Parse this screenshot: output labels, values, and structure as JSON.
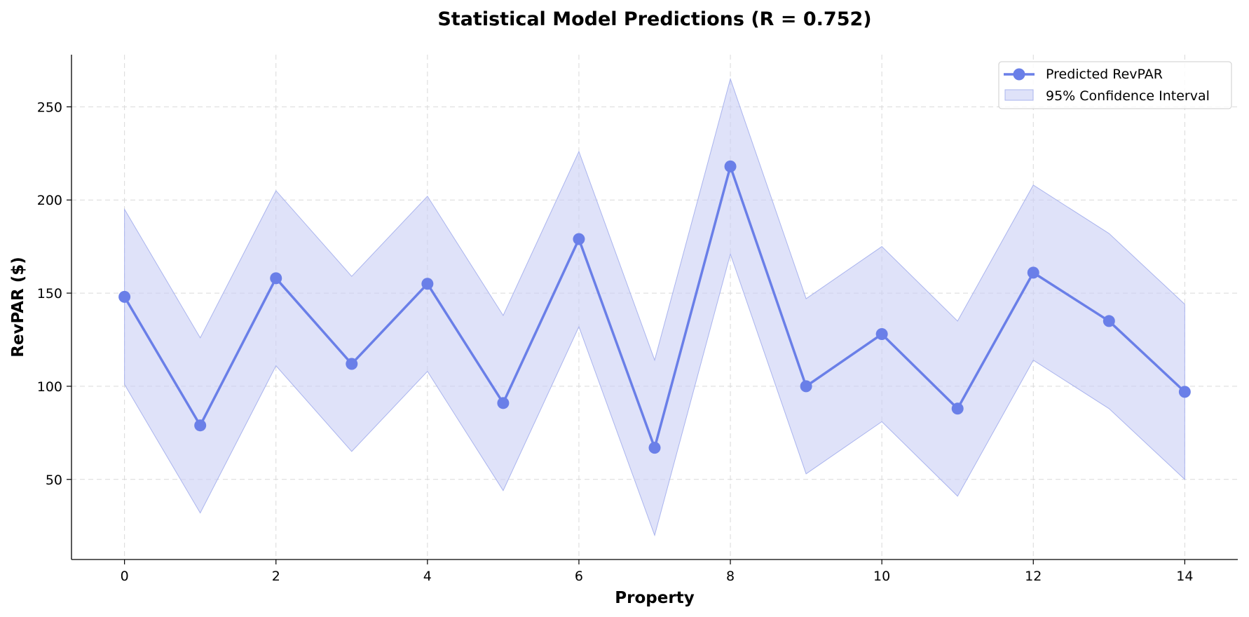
{
  "chart_data": {
    "type": "line",
    "title": "Statistical Model Predictions (R = 0.752)",
    "xlabel": "Property",
    "ylabel": "RevPAR ($)",
    "x": [
      0,
      1,
      2,
      3,
      4,
      5,
      6,
      7,
      8,
      9,
      10,
      11,
      12,
      13,
      14
    ],
    "xlim": [
      -0.7,
      14.7
    ],
    "ylim": [
      7,
      278
    ],
    "xticks": [
      0,
      2,
      4,
      6,
      8,
      10,
      12,
      14
    ],
    "yticks": [
      50,
      100,
      150,
      200,
      250
    ],
    "grid": true,
    "legend_position": "top-right",
    "series": [
      {
        "name": "Predicted RevPAR",
        "color": "#6a7fe8",
        "marker": "circle",
        "values": [
          148,
          79,
          158,
          112,
          155,
          91,
          179,
          67,
          218,
          100,
          128,
          88,
          161,
          135,
          97
        ]
      }
    ],
    "band": {
      "name": "95% Confidence Interval",
      "color": "#c9cef5",
      "edge_color": "#aab4ee",
      "lower": [
        101,
        32,
        111,
        65,
        108,
        44,
        132,
        20,
        171,
        53,
        81,
        41,
        114,
        88,
        50
      ],
      "upper": [
        195,
        126,
        205,
        159,
        202,
        138,
        226,
        114,
        265,
        147,
        175,
        135,
        208,
        182,
        144
      ]
    }
  }
}
